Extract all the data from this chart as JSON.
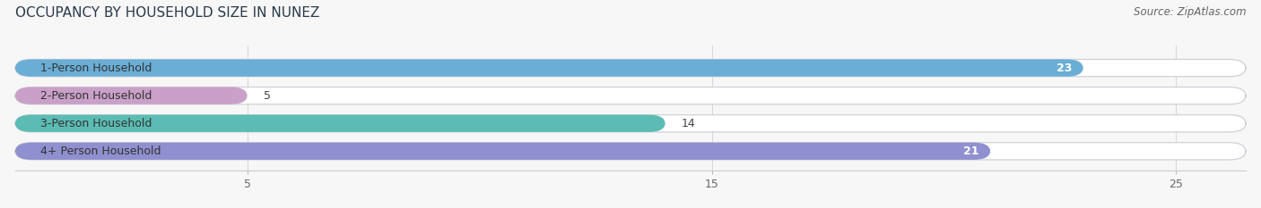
{
  "title": "OCCUPANCY BY HOUSEHOLD SIZE IN NUNEZ",
  "source": "Source: ZipAtlas.com",
  "categories": [
    "1-Person Household",
    "2-Person Household",
    "3-Person Household",
    "4+ Person Household"
  ],
  "values": [
    23,
    5,
    14,
    21
  ],
  "bar_colors": [
    "#6aaed6",
    "#c9a0c8",
    "#5bbcb4",
    "#9090d0"
  ],
  "value_inside": [
    true,
    false,
    false,
    true
  ],
  "xlim": [
    0,
    26.5
  ],
  "xticks": [
    5,
    15,
    25
  ],
  "background_color": "#f7f7f7",
  "bar_bg_color": "#ffffff",
  "bar_border_color": "#d0d0d8",
  "grid_color": "#d8d8e0",
  "title_fontsize": 11,
  "source_fontsize": 8.5,
  "label_fontsize": 9,
  "value_fontsize": 9,
  "bar_height": 0.62,
  "rounding_size": 0.35
}
